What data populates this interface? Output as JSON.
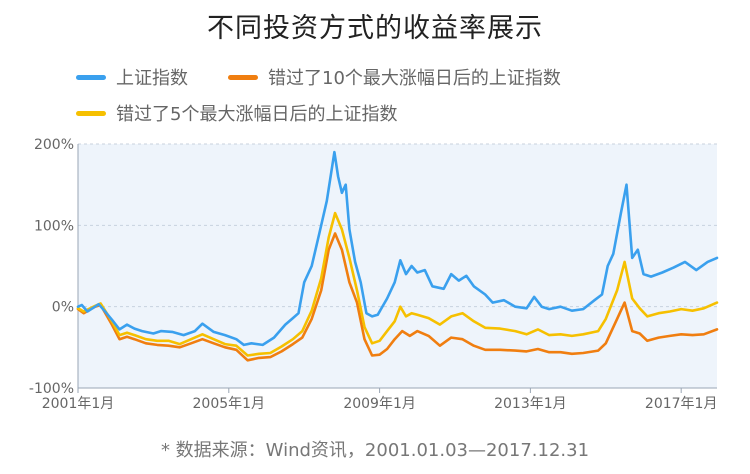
{
  "chart_data": {
    "type": "line",
    "title": "不同投资方式的收益率展示",
    "legend": [
      {
        "name": "上证指数",
        "color": "#3aa0ee"
      },
      {
        "name": "错过了10个最大涨幅日后的上证指数",
        "color": "#f07e10"
      },
      {
        "name": "错过了5个最大涨幅日后的上证指数",
        "color": "#f6c000"
      }
    ],
    "ylim": [
      -100,
      200
    ],
    "yticks": [
      -100,
      0,
      100,
      200
    ],
    "ytick_labels": [
      "-100%",
      "0%",
      "100%",
      "200%"
    ],
    "xlim": [
      2001.0,
      2017.95
    ],
    "xticks": [
      2001.0,
      2005.0,
      2009.0,
      2013.0,
      2017.0
    ],
    "xtick_labels": [
      "2001年1月",
      "2005年1月",
      "2009年1月",
      "2013年1月",
      "2017年1月"
    ],
    "series": [
      {
        "name": "上证指数",
        "color": "#3aa0ee",
        "points": [
          [
            2001.0,
            0
          ],
          [
            2001.1,
            2
          ],
          [
            2001.25,
            -6
          ],
          [
            2001.45,
            0
          ],
          [
            2001.55,
            3
          ],
          [
            2001.7,
            -5
          ],
          [
            2001.9,
            -16
          ],
          [
            2002.0,
            -22
          ],
          [
            2002.1,
            -28
          ],
          [
            2002.3,
            -22
          ],
          [
            2002.5,
            -27
          ],
          [
            2002.7,
            -30
          ],
          [
            2003.0,
            -33
          ],
          [
            2003.2,
            -30
          ],
          [
            2003.5,
            -31
          ],
          [
            2003.8,
            -35
          ],
          [
            2004.1,
            -30
          ],
          [
            2004.3,
            -21
          ],
          [
            2004.6,
            -31
          ],
          [
            2004.9,
            -35
          ],
          [
            2005.2,
            -40
          ],
          [
            2005.4,
            -47
          ],
          [
            2005.6,
            -45
          ],
          [
            2005.9,
            -47
          ],
          [
            2006.2,
            -38
          ],
          [
            2006.5,
            -22
          ],
          [
            2006.7,
            -14
          ],
          [
            2006.85,
            -8
          ],
          [
            2007.0,
            30
          ],
          [
            2007.2,
            50
          ],
          [
            2007.4,
            90
          ],
          [
            2007.6,
            130
          ],
          [
            2007.75,
            175
          ],
          [
            2007.8,
            190
          ],
          [
            2007.9,
            160
          ],
          [
            2008.0,
            140
          ],
          [
            2008.1,
            150
          ],
          [
            2008.2,
            95
          ],
          [
            2008.35,
            55
          ],
          [
            2008.5,
            30
          ],
          [
            2008.65,
            -8
          ],
          [
            2008.8,
            -12
          ],
          [
            2008.95,
            -10
          ],
          [
            2009.2,
            10
          ],
          [
            2009.4,
            30
          ],
          [
            2009.55,
            57
          ],
          [
            2009.7,
            40
          ],
          [
            2009.85,
            50
          ],
          [
            2010.0,
            42
          ],
          [
            2010.2,
            45
          ],
          [
            2010.4,
            25
          ],
          [
            2010.7,
            22
          ],
          [
            2010.9,
            40
          ],
          [
            2011.1,
            32
          ],
          [
            2011.3,
            38
          ],
          [
            2011.5,
            25
          ],
          [
            2011.8,
            15
          ],
          [
            2012.0,
            5
          ],
          [
            2012.3,
            8
          ],
          [
            2012.6,
            0
          ],
          [
            2012.9,
            -2
          ],
          [
            2013.1,
            12
          ],
          [
            2013.3,
            0
          ],
          [
            2013.5,
            -3
          ],
          [
            2013.8,
            0
          ],
          [
            2014.1,
            -5
          ],
          [
            2014.4,
            -3
          ],
          [
            2014.7,
            8
          ],
          [
            2014.9,
            15
          ],
          [
            2015.05,
            50
          ],
          [
            2015.2,
            65
          ],
          [
            2015.4,
            115
          ],
          [
            2015.55,
            150
          ],
          [
            2015.7,
            60
          ],
          [
            2015.85,
            70
          ],
          [
            2016.0,
            40
          ],
          [
            2016.2,
            37
          ],
          [
            2016.5,
            42
          ],
          [
            2016.8,
            48
          ],
          [
            2017.1,
            55
          ],
          [
            2017.4,
            45
          ],
          [
            2017.7,
            55
          ],
          [
            2017.95,
            60
          ]
        ]
      },
      {
        "name": "错过了10个最大涨幅日后的上证指数",
        "color": "#f07e10",
        "points": [
          [
            2001.0,
            -3
          ],
          [
            2001.15,
            -8
          ],
          [
            2001.45,
            0
          ],
          [
            2001.6,
            2
          ],
          [
            2001.9,
            -22
          ],
          [
            2002.1,
            -40
          ],
          [
            2002.3,
            -37
          ],
          [
            2002.5,
            -40
          ],
          [
            2002.8,
            -45
          ],
          [
            2003.1,
            -47
          ],
          [
            2003.4,
            -48
          ],
          [
            2003.7,
            -50
          ],
          [
            2004.0,
            -45
          ],
          [
            2004.3,
            -40
          ],
          [
            2004.6,
            -45
          ],
          [
            2004.9,
            -50
          ],
          [
            2005.2,
            -53
          ],
          [
            2005.5,
            -66
          ],
          [
            2005.8,
            -63
          ],
          [
            2006.1,
            -62
          ],
          [
            2006.4,
            -55
          ],
          [
            2006.7,
            -46
          ],
          [
            2006.95,
            -38
          ],
          [
            2007.2,
            -15
          ],
          [
            2007.45,
            20
          ],
          [
            2007.65,
            70
          ],
          [
            2007.82,
            90
          ],
          [
            2008.0,
            70
          ],
          [
            2008.2,
            30
          ],
          [
            2008.4,
            5
          ],
          [
            2008.6,
            -40
          ],
          [
            2008.8,
            -60
          ],
          [
            2009.0,
            -59
          ],
          [
            2009.2,
            -52
          ],
          [
            2009.4,
            -40
          ],
          [
            2009.6,
            -30
          ],
          [
            2009.8,
            -36
          ],
          [
            2010.0,
            -30
          ],
          [
            2010.3,
            -36
          ],
          [
            2010.6,
            -48
          ],
          [
            2010.9,
            -38
          ],
          [
            2011.2,
            -40
          ],
          [
            2011.5,
            -48
          ],
          [
            2011.8,
            -53
          ],
          [
            2012.2,
            -53
          ],
          [
            2012.6,
            -54
          ],
          [
            2012.9,
            -55
          ],
          [
            2013.2,
            -52
          ],
          [
            2013.5,
            -56
          ],
          [
            2013.8,
            -56
          ],
          [
            2014.1,
            -58
          ],
          [
            2014.4,
            -57
          ],
          [
            2014.8,
            -54
          ],
          [
            2015.0,
            -45
          ],
          [
            2015.3,
            -15
          ],
          [
            2015.5,
            5
          ],
          [
            2015.7,
            -30
          ],
          [
            2015.9,
            -33
          ],
          [
            2016.1,
            -42
          ],
          [
            2016.4,
            -38
          ],
          [
            2016.7,
            -36
          ],
          [
            2017.0,
            -34
          ],
          [
            2017.3,
            -35
          ],
          [
            2017.6,
            -34
          ],
          [
            2017.95,
            -28
          ]
        ]
      },
      {
        "name": "错过了5个最大涨幅日后的上证指数",
        "color": "#f6c000",
        "points": [
          [
            2001.0,
            -2
          ],
          [
            2001.15,
            -6
          ],
          [
            2001.45,
            1
          ],
          [
            2001.6,
            4
          ],
          [
            2001.9,
            -18
          ],
          [
            2002.1,
            -35
          ],
          [
            2002.3,
            -32
          ],
          [
            2002.5,
            -35
          ],
          [
            2002.8,
            -40
          ],
          [
            2003.1,
            -42
          ],
          [
            2003.4,
            -42
          ],
          [
            2003.7,
            -46
          ],
          [
            2004.0,
            -40
          ],
          [
            2004.3,
            -34
          ],
          [
            2004.6,
            -40
          ],
          [
            2004.9,
            -46
          ],
          [
            2005.2,
            -48
          ],
          [
            2005.5,
            -60
          ],
          [
            2005.8,
            -58
          ],
          [
            2006.1,
            -57
          ],
          [
            2006.4,
            -49
          ],
          [
            2006.7,
            -40
          ],
          [
            2006.95,
            -30
          ],
          [
            2007.2,
            -5
          ],
          [
            2007.45,
            35
          ],
          [
            2007.65,
            85
          ],
          [
            2007.82,
            115
          ],
          [
            2008.0,
            95
          ],
          [
            2008.2,
            60
          ],
          [
            2008.4,
            20
          ],
          [
            2008.6,
            -25
          ],
          [
            2008.8,
            -45
          ],
          [
            2009.0,
            -42
          ],
          [
            2009.2,
            -30
          ],
          [
            2009.4,
            -18
          ],
          [
            2009.55,
            0
          ],
          [
            2009.7,
            -12
          ],
          [
            2009.85,
            -8
          ],
          [
            2010.0,
            -10
          ],
          [
            2010.3,
            -14
          ],
          [
            2010.6,
            -22
          ],
          [
            2010.9,
            -12
          ],
          [
            2011.2,
            -8
          ],
          [
            2011.5,
            -18
          ],
          [
            2011.8,
            -26
          ],
          [
            2012.2,
            -27
          ],
          [
            2012.6,
            -30
          ],
          [
            2012.9,
            -34
          ],
          [
            2013.2,
            -28
          ],
          [
            2013.5,
            -35
          ],
          [
            2013.8,
            -34
          ],
          [
            2014.1,
            -36
          ],
          [
            2014.4,
            -34
          ],
          [
            2014.8,
            -30
          ],
          [
            2015.0,
            -15
          ],
          [
            2015.3,
            20
          ],
          [
            2015.5,
            55
          ],
          [
            2015.7,
            10
          ],
          [
            2015.9,
            -2
          ],
          [
            2016.1,
            -12
          ],
          [
            2016.4,
            -8
          ],
          [
            2016.7,
            -6
          ],
          [
            2017.0,
            -3
          ],
          [
            2017.3,
            -5
          ],
          [
            2017.6,
            -2
          ],
          [
            2017.95,
            5
          ]
        ]
      }
    ],
    "note": "* 数据来源：Wind资讯，2001.01.03—2017.12.31"
  }
}
